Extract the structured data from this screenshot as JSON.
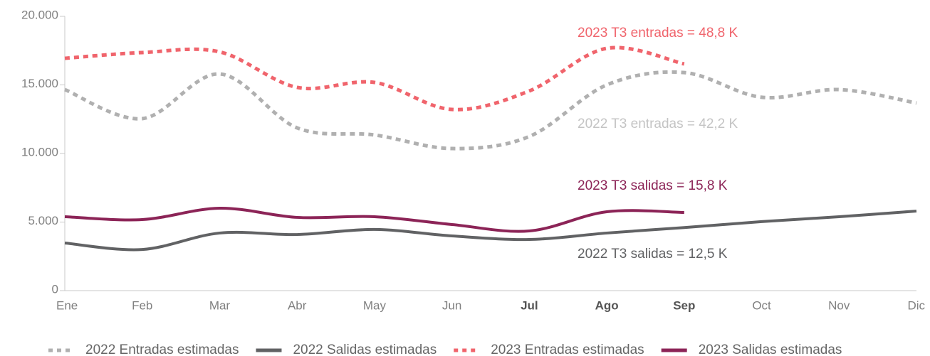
{
  "chart_data": {
    "type": "line",
    "categories": [
      "Ene",
      "Feb",
      "Mar",
      "Abr",
      "May",
      "Jun",
      "Jul",
      "Ago",
      "Sep",
      "Oct",
      "Nov",
      "Dic"
    ],
    "highlight_categories": [
      6,
      7,
      8
    ],
    "ylim": [
      0,
      20000
    ],
    "yticks": [
      {
        "value": 0,
        "label": "0"
      },
      {
        "value": 5000,
        "label": "5.000"
      },
      {
        "value": 10000,
        "label": "10.000"
      },
      {
        "value": 15000,
        "label": "15.000"
      },
      {
        "value": 20000,
        "label": "20.000"
      }
    ],
    "series": [
      {
        "name": "2022 Entradas estimadas",
        "color": "#b0b0b0",
        "dash": true,
        "values": [
          14660,
          12540,
          15800,
          11870,
          11350,
          10360,
          11240,
          15000,
          15900,
          14100,
          14660,
          13680
        ]
      },
      {
        "name": "2022 Salidas estimadas",
        "color": "#616264",
        "dash": false,
        "values": [
          3470,
          3000,
          4200,
          4090,
          4460,
          3990,
          3730,
          4200,
          4600,
          5030,
          5390,
          5800
        ]
      },
      {
        "name": "2023 Entradas estimadas",
        "color": "#f0646c",
        "dash": true,
        "values": [
          16940,
          17360,
          17410,
          14820,
          15180,
          13210,
          14560,
          17670,
          16530,
          null,
          null,
          null
        ]
      },
      {
        "name": "2023 Salidas estimadas",
        "color": "#8c2457",
        "dash": false,
        "values": [
          5390,
          5180,
          6010,
          5340,
          5390,
          4820,
          4350,
          5750,
          5700,
          null,
          null,
          null
        ]
      }
    ],
    "annotations": [
      {
        "text": "2023 T3 entradas = 48,8 K",
        "color": "#f0646c"
      },
      {
        "text": "2022 T3 entradas = 42,2 K",
        "color": "#c4c4c4"
      },
      {
        "text": "2023 T3 salidas = 15,8 K",
        "color": "#8c2457"
      },
      {
        "text": "2022 T3 salidas = 12,5 K",
        "color": "#616264"
      }
    ]
  }
}
